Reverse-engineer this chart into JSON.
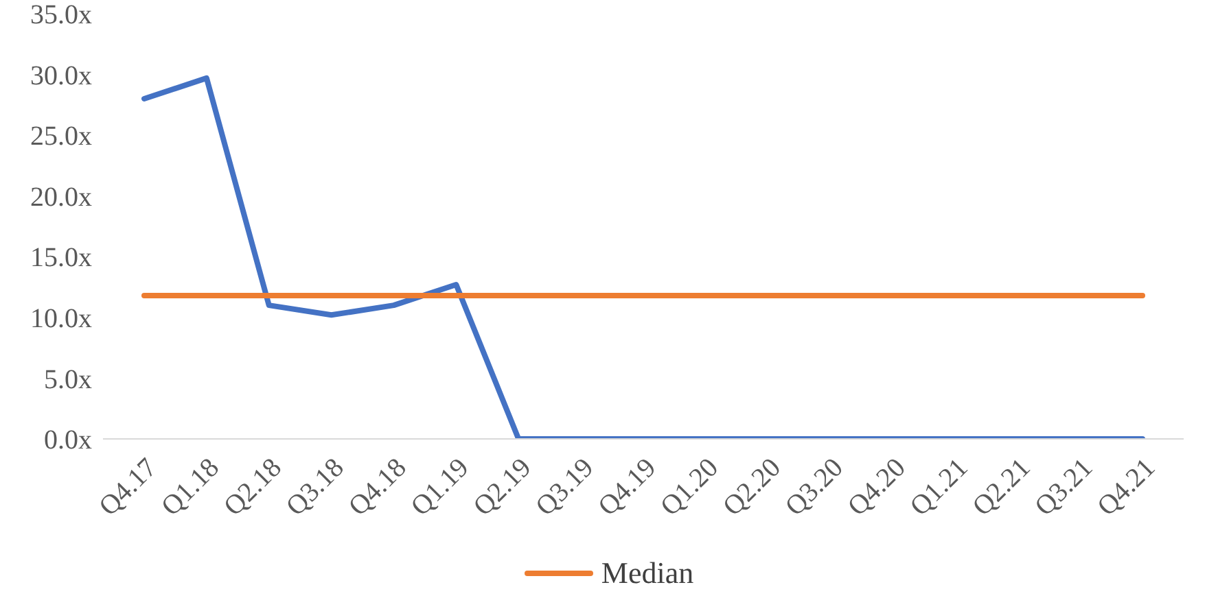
{
  "chart_data": {
    "type": "line",
    "categories": [
      "Q4.17",
      "Q1.18",
      "Q2.18",
      "Q3.18",
      "Q4.18",
      "Q1.19",
      "Q2.19",
      "Q3.19",
      "Q4.19",
      "Q1.20",
      "Q2.20",
      "Q3.20",
      "Q4.20",
      "Q1.21",
      "Q2.21",
      "Q3.21",
      "Q4.21"
    ],
    "series": [
      {
        "color": "#4472c4",
        "values": [
          28,
          29.7,
          11,
          10.2,
          11,
          12.7,
          0,
          0,
          0,
          0,
          0,
          0,
          0,
          0,
          0,
          0,
          0
        ]
      },
      {
        "name": "Median",
        "color": "#ed7d31",
        "values": [
          11.8,
          11.8,
          11.8,
          11.8,
          11.8,
          11.8,
          11.8,
          11.8,
          11.8,
          11.8,
          11.8,
          11.8,
          11.8,
          11.8,
          11.8,
          11.8,
          11.8
        ]
      }
    ],
    "ylim": [
      0,
      35
    ],
    "yticks": [
      {
        "value": 0,
        "label": "0.0x"
      },
      {
        "value": 5,
        "label": "5.0x"
      },
      {
        "value": 10,
        "label": "10.0x"
      },
      {
        "value": 15,
        "label": "15.0x"
      },
      {
        "value": 20,
        "label": "20.0x"
      },
      {
        "value": 25,
        "label": "25.0x"
      },
      {
        "value": 30,
        "label": "30.0x"
      },
      {
        "value": 35,
        "label": "35.0x"
      }
    ],
    "grid": false,
    "legend": "bottom",
    "marker": "none",
    "line_style": "solid"
  }
}
